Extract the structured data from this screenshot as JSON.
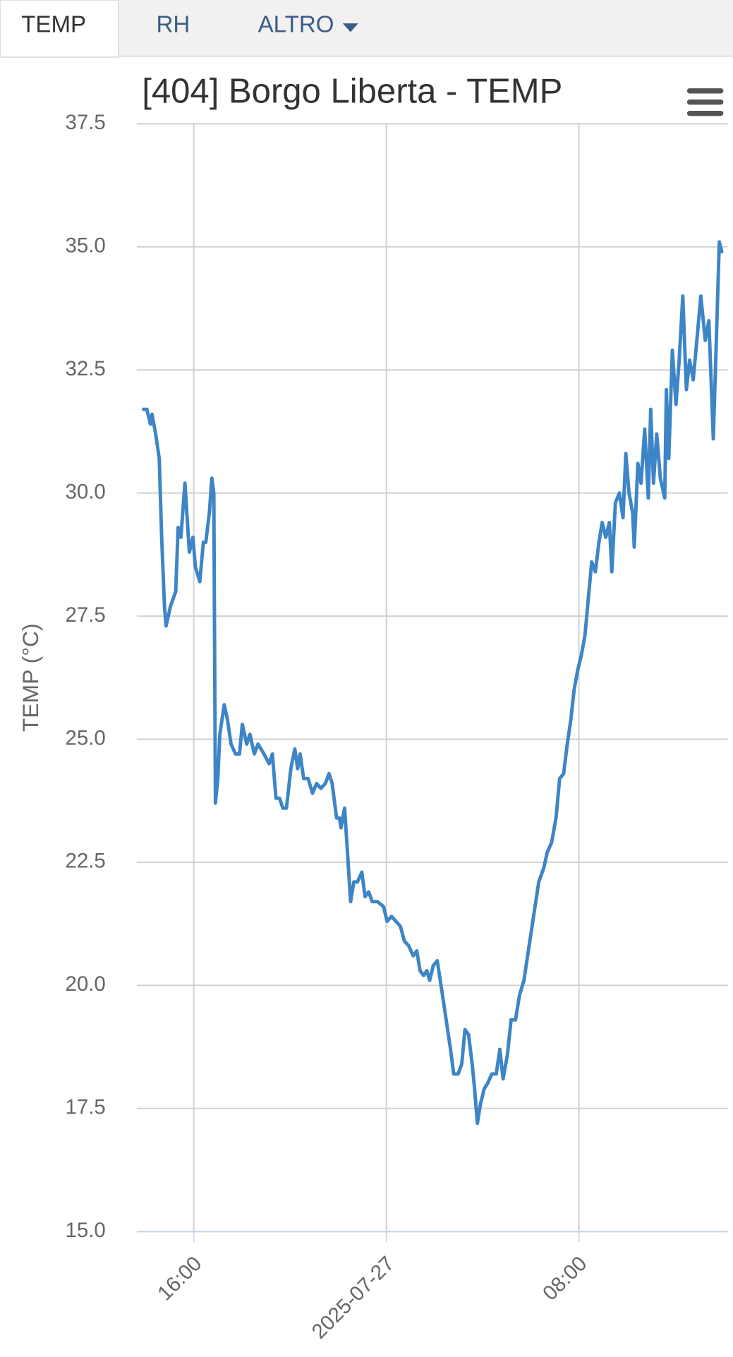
{
  "tabs": [
    "TEMP",
    "RH",
    "ALTRO"
  ],
  "chart_data": {
    "type": "line",
    "title": "[404] Borgo Liberta - TEMP",
    "y_label": "TEMP (°C)",
    "color": "#3d85c6",
    "grid": true,
    "xlim": [
      "2025-07-26 13:38",
      "2025-07-27 14:11"
    ],
    "xticks": [
      {
        "value": "2025-07-26 16:00",
        "label": "16:00"
      },
      {
        "value": "2025-07-27 00:00",
        "label": "2025-07-27"
      },
      {
        "value": "2025-07-27 08:00",
        "label": "08:00"
      }
    ],
    "ylim": [
      15,
      37.5
    ],
    "yticks": [
      {
        "value": 15,
        "label": "15.0"
      },
      17.5,
      {
        "value": 20,
        "label": "20.0"
      },
      22.5,
      {
        "value": 25,
        "label": "25.0"
      },
      27.5,
      {
        "value": 30,
        "label": "30.0"
      },
      32.5,
      {
        "value": 35,
        "label": "35.0"
      },
      37.5
    ],
    "x": [
      "2025-07-26 13:55",
      "2025-07-26 14:03",
      "2025-07-26 14:12",
      "2025-07-26 14:16",
      "2025-07-26 14:25",
      "2025-07-26 14:34",
      "2025-07-26 14:40",
      "2025-07-26 14:47",
      "2025-07-26 14:51",
      "2025-07-26 15:02",
      "2025-07-26 15:15",
      "2025-07-26 15:21",
      "2025-07-26 15:28",
      "2025-07-26 15:38",
      "2025-07-26 15:49",
      "2025-07-26 15:58",
      "2025-07-26 16:04",
      "2025-07-26 16:15",
      "2025-07-26 16:24",
      "2025-07-26 16:30",
      "2025-07-26 16:39",
      "2025-07-26 16:45",
      "2025-07-26 16:50",
      "2025-07-26 16:54",
      "2025-07-26 17:00",
      "2025-07-26 17:05",
      "2025-07-26 17:16",
      "2025-07-26 17:24",
      "2025-07-26 17:33",
      "2025-07-26 17:44",
      "2025-07-26 17:54",
      "2025-07-26 18:01",
      "2025-07-26 18:12",
      "2025-07-26 18:20",
      "2025-07-26 18:31",
      "2025-07-26 18:40",
      "2025-07-26 18:55",
      "2025-07-26 19:08",
      "2025-07-26 19:16",
      "2025-07-26 19:25",
      "2025-07-26 19:34",
      "2025-07-26 19:42",
      "2025-07-26 19:51",
      "2025-07-26 20:02",
      "2025-07-26 20:12",
      "2025-07-26 20:19",
      "2025-07-26 20:25",
      "2025-07-26 20:34",
      "2025-07-26 20:45",
      "2025-07-26 20:56",
      "2025-07-26 21:06",
      "2025-07-26 21:17",
      "2025-07-26 21:28",
      "2025-07-26 21:37",
      "2025-07-26 21:45",
      "2025-07-26 21:56",
      "2025-07-26 22:03",
      "2025-07-26 22:07",
      "2025-07-26 22:16",
      "2025-07-26 22:24",
      "2025-07-26 22:31",
      "2025-07-26 22:39",
      "2025-07-26 22:48",
      "2025-07-26 22:59",
      "2025-07-26 23:07",
      "2025-07-26 23:16",
      "2025-07-26 23:25",
      "2025-07-26 23:38",
      "2025-07-26 23:53",
      "2025-07-27 00:02",
      "2025-07-27 00:13",
      "2025-07-27 00:24",
      "2025-07-27 00:35",
      "2025-07-27 00:45",
      "2025-07-27 00:56",
      "2025-07-27 01:07",
      "2025-07-27 01:16",
      "2025-07-27 01:24",
      "2025-07-27 01:33",
      "2025-07-27 01:41",
      "2025-07-27 01:48",
      "2025-07-27 01:57",
      "2025-07-27 02:07",
      "2025-07-27 02:20",
      "2025-07-27 02:31",
      "2025-07-27 02:40",
      "2025-07-27 02:48",
      "2025-07-27 02:59",
      "2025-07-27 03:08",
      "2025-07-27 03:16",
      "2025-07-27 03:25",
      "2025-07-27 03:34",
      "2025-07-27 03:40",
      "2025-07-27 03:47",
      "2025-07-27 03:55",
      "2025-07-27 04:04",
      "2025-07-27 04:12",
      "2025-07-27 04:23",
      "2025-07-27 04:34",
      "2025-07-27 04:43",
      "2025-07-27 04:51",
      "2025-07-27 05:02",
      "2025-07-27 05:11",
      "2025-07-27 05:22",
      "2025-07-27 05:32",
      "2025-07-27 05:43",
      "2025-07-27 05:54",
      "2025-07-27 06:07",
      "2025-07-27 06:20",
      "2025-07-27 06:33",
      "2025-07-27 06:41",
      "2025-07-27 06:52",
      "2025-07-27 07:03",
      "2025-07-27 07:12",
      "2025-07-27 07:22",
      "2025-07-27 07:31",
      "2025-07-27 07:40",
      "2025-07-27 07:48",
      "2025-07-27 07:57",
      "2025-07-27 08:06",
      "2025-07-27 08:15",
      "2025-07-27 08:24",
      "2025-07-27 08:32",
      "2025-07-27 08:41",
      "2025-07-27 08:50",
      "2025-07-27 08:58",
      "2025-07-27 09:07",
      "2025-07-27 09:16",
      "2025-07-27 09:22",
      "2025-07-27 09:31",
      "2025-07-27 09:41",
      "2025-07-27 09:50",
      "2025-07-27 09:57",
      "2025-07-27 10:05",
      "2025-07-27 10:14",
      "2025-07-27 10:18",
      "2025-07-27 10:27",
      "2025-07-27 10:35",
      "2025-07-27 10:44",
      "2025-07-27 10:53",
      "2025-07-27 10:59",
      "2025-07-27 11:06",
      "2025-07-27 11:14",
      "2025-07-27 11:23",
      "2025-07-27 11:34",
      "2025-07-27 11:38",
      "2025-07-27 11:44",
      "2025-07-27 11:53",
      "2025-07-27 12:02",
      "2025-07-27 12:10",
      "2025-07-27 12:19",
      "2025-07-27 12:28",
      "2025-07-27 12:36",
      "2025-07-27 12:45",
      "2025-07-27 12:54",
      "2025-07-27 13:04",
      "2025-07-27 13:15",
      "2025-07-27 13:24",
      "2025-07-27 13:35",
      "2025-07-27 13:43",
      "2025-07-27 13:50",
      "2025-07-27 13:56"
    ],
    "values": [
      31.7,
      31.7,
      31.4,
      31.6,
      31.2,
      30.7,
      29.1,
      27.7,
      27.3,
      27.7,
      28.0,
      29.3,
      29.1,
      30.2,
      28.8,
      29.1,
      28.5,
      28.2,
      29.0,
      29.0,
      29.6,
      30.3,
      30.0,
      23.7,
      24.2,
      25.1,
      25.7,
      25.4,
      24.9,
      24.7,
      24.7,
      25.3,
      24.9,
      25.1,
      24.7,
      24.9,
      24.7,
      24.5,
      24.7,
      23.8,
      23.8,
      23.6,
      23.6,
      24.4,
      24.8,
      24.4,
      24.7,
      24.2,
      24.2,
      23.9,
      24.1,
      24.0,
      24.1,
      24.3,
      24.1,
      23.4,
      23.4,
      23.2,
      23.6,
      22.6,
      21.7,
      22.1,
      22.1,
      22.3,
      21.8,
      21.9,
      21.7,
      21.7,
      21.6,
      21.3,
      21.4,
      21.3,
      21.2,
      20.9,
      20.8,
      20.6,
      20.7,
      20.3,
      20.2,
      20.3,
      20.1,
      20.4,
      20.5,
      19.8,
      19.2,
      18.7,
      18.2,
      18.2,
      18.4,
      19.1,
      19.0,
      18.4,
      17.9,
      17.2,
      17.6,
      17.9,
      18.0,
      18.2,
      18.2,
      18.7,
      18.1,
      18.6,
      19.3,
      19.3,
      19.8,
      20.1,
      20.7,
      21.4,
      22.1,
      22.4,
      22.7,
      22.9,
      23.4,
      24.2,
      24.3,
      24.9,
      25.4,
      26.0,
      26.4,
      26.7,
      27.1,
      27.9,
      28.6,
      28.4,
      29.0,
      29.4,
      29.1,
      29.4,
      28.4,
      29.8,
      30.0,
      29.5,
      30.8,
      30.0,
      29.6,
      28.9,
      30.6,
      30.2,
      31.3,
      29.9,
      31.7,
      30.2,
      31.2,
      30.3,
      29.9,
      32.1,
      30.7,
      32.9,
      31.8,
      32.7,
      34.0,
      32.1,
      32.7,
      32.3,
      33.1,
      34.0,
      33.1,
      33.5,
      31.1,
      33.2,
      35.1,
      34.9
    ]
  }
}
